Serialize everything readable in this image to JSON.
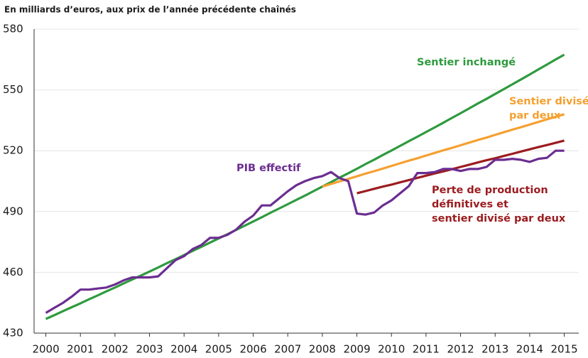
{
  "chart_data": {
    "type": "line",
    "title": "En milliards d’euros, aux prix de l’année précédente chaînés",
    "x": [
      2000,
      2000.25,
      2000.5,
      2000.75,
      2001,
      2001.25,
      2001.5,
      2001.75,
      2002,
      2002.25,
      2002.5,
      2002.75,
      2003,
      2003.25,
      2003.5,
      2003.75,
      2004,
      2004.25,
      2004.5,
      2004.75,
      2005,
      2005.25,
      2005.5,
      2005.75,
      2006,
      2006.25,
      2006.5,
      2006.75,
      2007,
      2007.25,
      2007.5,
      2007.75,
      2008,
      2008.25,
      2008.5,
      2008.75,
      2009,
      2009.25,
      2009.5,
      2009.75,
      2010,
      2010.25,
      2010.5,
      2010.75,
      2011,
      2011.25,
      2011.5,
      2011.75,
      2012,
      2012.25,
      2012.5,
      2012.75,
      2013,
      2013.25,
      2013.5,
      2013.75,
      2014,
      2014.25,
      2014.5,
      2014.75,
      2015
    ],
    "xlim": [
      1999.66,
      2015.42
    ],
    "xticks": [
      2000,
      2001,
      2002,
      2003,
      2004,
      2005,
      2006,
      2007,
      2008,
      2009,
      2010,
      2011,
      2012,
      2013,
      2014,
      2015
    ],
    "ylim": [
      430,
      580
    ],
    "yticks": [
      430,
      460,
      490,
      520,
      550,
      580
    ],
    "grid": true,
    "series": [
      {
        "label": [
          "Sentier inchangé"
        ],
        "color": "#2e9a3e",
        "values": [
          437,
          438.9,
          440.9,
          442.8,
          444.7,
          446.7,
          448.6,
          450.6,
          452.5,
          454.5,
          456.5,
          458.4,
          460.4,
          462.4,
          464.5,
          466.5,
          468.5,
          470.6,
          472.6,
          474.7,
          476.7,
          478.8,
          480.9,
          483.0,
          485.1,
          487.2,
          489.4,
          491.5,
          493.6,
          495.8,
          497.9,
          500.1,
          502.3,
          504.5,
          506.7,
          508.9,
          511.1,
          513.4,
          515.6,
          517.9,
          520.1,
          522.4,
          524.7,
          526.9,
          529.2,
          531.5,
          533.8,
          536.2,
          538.5,
          540.9,
          543.3,
          545.6,
          548.0,
          550.4,
          552.8,
          555.2,
          557.6,
          560.1,
          562.5,
          565.0,
          567.4
        ]
      },
      {
        "label": [
          "Sentier divisé",
          "par deux"
        ],
        "color": "#f5a030",
        "values": [
          null,
          null,
          null,
          null,
          null,
          null,
          null,
          null,
          null,
          null,
          null,
          null,
          null,
          null,
          null,
          null,
          null,
          null,
          null,
          null,
          null,
          null,
          null,
          null,
          null,
          null,
          null,
          null,
          null,
          null,
          null,
          null,
          502.3,
          503.6,
          504.9,
          506.1,
          507.4,
          508.7,
          509.9,
          511.2,
          512.5,
          513.8,
          515.1,
          516.3,
          517.6,
          518.9,
          520.2,
          521.4,
          522.7,
          524.0,
          525.3,
          526.5,
          527.8,
          529.1,
          530.4,
          531.6,
          532.9,
          534.2,
          535.5,
          536.7,
          538.0
        ]
      },
      {
        "label": [
          "Perte de production",
          "définitives et",
          "sentier divisé par deux"
        ],
        "color": "#9b1c1f",
        "values": [
          null,
          null,
          null,
          null,
          null,
          null,
          null,
          null,
          null,
          null,
          null,
          null,
          null,
          null,
          null,
          null,
          null,
          null,
          null,
          null,
          null,
          null,
          null,
          null,
          null,
          null,
          null,
          null,
          null,
          null,
          null,
          null,
          null,
          null,
          null,
          null,
          499.0,
          500.1,
          501.2,
          502.3,
          503.3,
          504.4,
          505.5,
          506.6,
          507.7,
          508.8,
          509.8,
          510.9,
          512.0,
          513.1,
          514.2,
          515.3,
          516.3,
          517.4,
          518.5,
          519.6,
          520.7,
          521.8,
          522.8,
          523.9,
          525.0
        ]
      },
      {
        "label": [
          "PIB effectif"
        ],
        "color": "#6b2d91",
        "values": [
          440,
          442.5,
          445,
          448,
          451.5,
          451.5,
          452,
          452.5,
          454,
          456,
          457.5,
          457.5,
          457.5,
          458,
          462,
          466,
          468,
          471.5,
          473.5,
          477,
          477,
          478.5,
          481,
          485,
          488,
          493,
          493,
          496.5,
          500,
          503,
          505,
          506.5,
          507.5,
          509.5,
          506.5,
          505,
          489,
          488.5,
          489.5,
          493,
          495.5,
          499,
          502.5,
          509,
          509,
          509.5,
          511,
          511,
          510,
          511,
          511,
          512,
          515.5,
          515.5,
          516,
          515.5,
          514.5,
          516,
          516.5,
          520,
          520
        ]
      }
    ]
  }
}
